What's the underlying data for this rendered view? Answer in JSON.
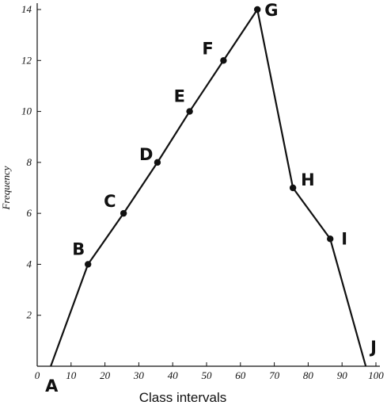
{
  "chart_data": {
    "type": "line",
    "title": "",
    "xlabel": "Class intervals",
    "ylabel": "Frequency",
    "xlim": [
      0,
      100
    ],
    "ylim": [
      0,
      14
    ],
    "x_ticks": [
      "0",
      "10",
      "20",
      "30",
      "40",
      "50",
      "60",
      "70",
      "80",
      "90",
      "100"
    ],
    "y_ticks": [
      "2",
      "4",
      "6",
      "8",
      "10",
      "12",
      "14"
    ],
    "grid": false,
    "series": [
      {
        "points": [
          {
            "label": "A",
            "x": 4,
            "y": 0
          },
          {
            "label": "B",
            "x": 15,
            "y": 4
          },
          {
            "label": "C",
            "x": 25.5,
            "y": 6
          },
          {
            "label": "D",
            "x": 35.5,
            "y": 8
          },
          {
            "label": "E",
            "x": 45,
            "y": 10
          },
          {
            "label": "F",
            "x": 55,
            "y": 12
          },
          {
            "label": "G",
            "x": 65,
            "y": 14
          },
          {
            "label": "H",
            "x": 75.5,
            "y": 7
          },
          {
            "label": "I",
            "x": 86.5,
            "y": 5
          },
          {
            "label": "J",
            "x": 97,
            "y": 0
          }
        ]
      }
    ]
  }
}
